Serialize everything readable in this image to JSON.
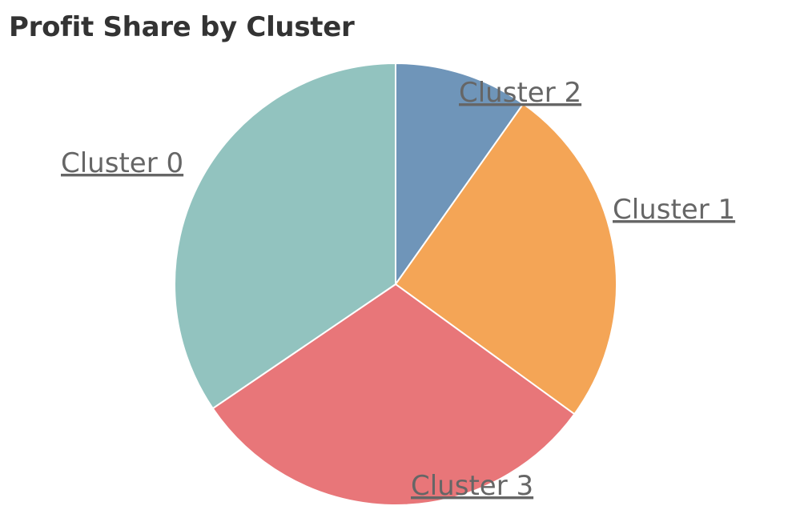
{
  "chart_data": {
    "type": "pie",
    "title": "Profit Share by Cluster",
    "categories": [
      "Cluster 2",
      "Cluster 1",
      "Cluster 3",
      "Cluster 0"
    ],
    "values": [
      9.8,
      25.2,
      30.5,
      34.5
    ],
    "unit": "percent of total profit (estimated)",
    "start_angle_deg": 0,
    "direction": "clockwise",
    "colors": [
      "#6f95b9",
      "#f4a556",
      "#e87679",
      "#92c3bf"
    ],
    "labels_underlined": true
  }
}
